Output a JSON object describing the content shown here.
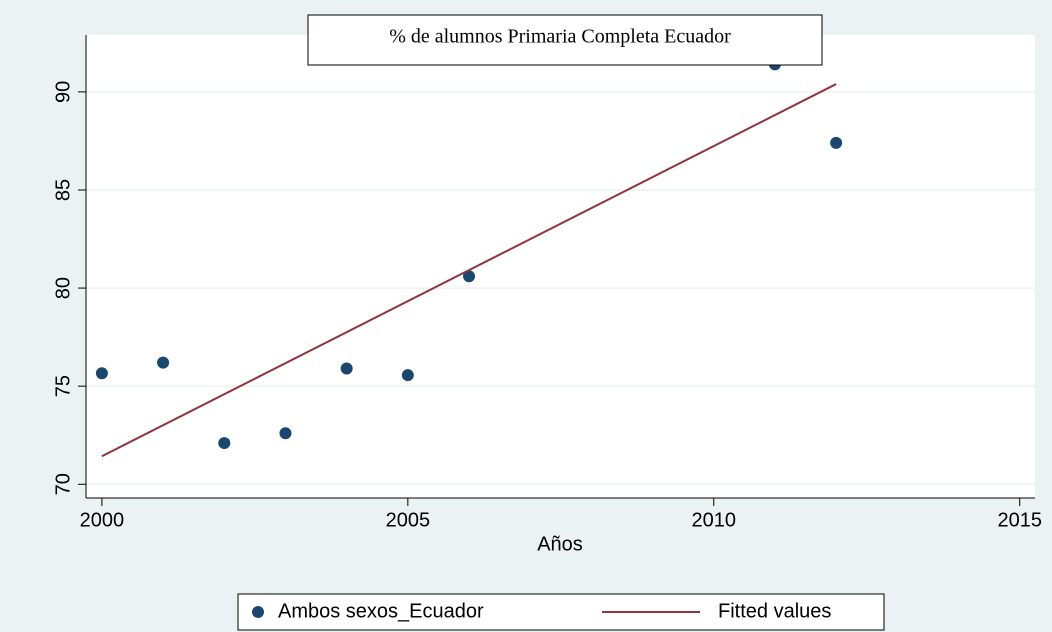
{
  "chart_data": {
    "type": "scatter",
    "title": "% de alumnos Primaria  Completa Ecuador",
    "x_label": "Años",
    "series": [
      {
        "name": "Ambos sexos_Ecuador",
        "type": "scatter",
        "color": "#1a476f",
        "x": [
          2000,
          2001,
          2002,
          2003,
          2004,
          2005,
          2006,
          2011,
          2012
        ],
        "values": [
          75.66,
          76.2,
          72.1,
          72.6,
          75.9,
          75.56,
          80.6,
          91.4,
          87.4
        ]
      },
      {
        "name": "Fitted values",
        "type": "line",
        "color": "#90353b",
        "x": [
          2000,
          2012
        ],
        "values": [
          71.43,
          90.4
        ]
      }
    ],
    "xlim": [
      1999.74,
      2015.25
    ],
    "xticks": [
      2000,
      2005,
      2010,
      2015
    ],
    "ylim": [
      69.3,
      92.9
    ],
    "yticks": [
      70,
      75,
      80,
      85,
      90
    ],
    "grid": true,
    "legend": "bottom"
  }
}
